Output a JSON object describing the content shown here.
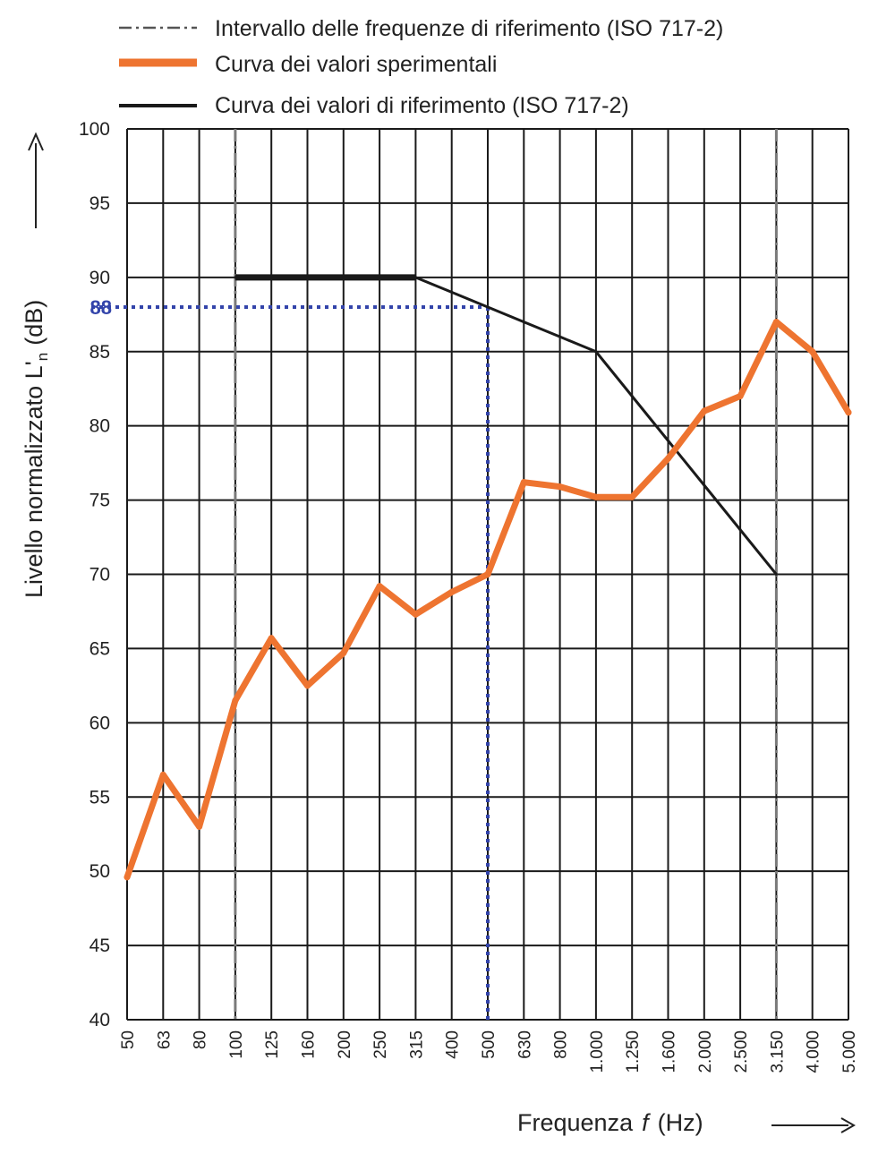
{
  "chart_data": {
    "type": "line",
    "title": "",
    "xlabel": "Frequenza",
    "xlabel_var": "f",
    "xlabel_unit": "(Hz)",
    "ylabel": "Livello normalizzato L'",
    "ylabel_sub": "n",
    "ylabel_unit": "(dB)",
    "categories": [
      "50",
      "63",
      "80",
      "100",
      "125",
      "160",
      "200",
      "250",
      "315",
      "400",
      "500",
      "630",
      "800",
      "1.000",
      "1.250",
      "1.600",
      "2.000",
      "2.500",
      "3.150",
      "4.000",
      "5.000"
    ],
    "y_ticks": [
      "40",
      "45",
      "50",
      "55",
      "60",
      "65",
      "70",
      "75",
      "80",
      "85",
      "90",
      "95",
      "100"
    ],
    "ylim": [
      40,
      100
    ],
    "grid": true,
    "legend": {
      "position": "top",
      "entries": [
        {
          "label": "Intervallo delle frequenze di riferimento (ISO 717-2)",
          "style": "dash-dot",
          "color": "#555555"
        },
        {
          "label": "Curva dei valori sperimentali",
          "style": "thick",
          "color": "#ee7430"
        },
        {
          "label": "Curva dei valori di riferimento (ISO 717-2)",
          "style": "solid",
          "color": "#1a1a1a"
        }
      ]
    },
    "series": [
      {
        "key": "experimental",
        "color": "#ee7430",
        "values": [
          49.6,
          56.5,
          53.0,
          61.5,
          65.7,
          62.5,
          64.7,
          69.2,
          67.3,
          68.8,
          70.0,
          76.2,
          75.9,
          75.2,
          75.2,
          77.8,
          81.0,
          82.0,
          87.0,
          85.0,
          80.9
        ]
      },
      {
        "key": "reference",
        "color": "#1a1a1a",
        "points": [
          [
            "100",
            90
          ],
          [
            "125",
            90
          ],
          [
            "160",
            90
          ],
          [
            "200",
            90
          ],
          [
            "250",
            90
          ],
          [
            "315",
            90
          ],
          [
            "400",
            89
          ],
          [
            "500",
            88
          ],
          [
            "630",
            87
          ],
          [
            "800",
            86
          ],
          [
            "1.000",
            85
          ],
          [
            "1.250",
            82
          ],
          [
            "1.600",
            79
          ],
          [
            "2.000",
            76
          ],
          [
            "2.500",
            73
          ],
          [
            "3.150",
            70
          ]
        ]
      }
    ],
    "reference_interval": [
      "100",
      "3.150"
    ],
    "marker": {
      "label": "88",
      "y": 88,
      "x": "500",
      "color": "#3344aa"
    }
  }
}
